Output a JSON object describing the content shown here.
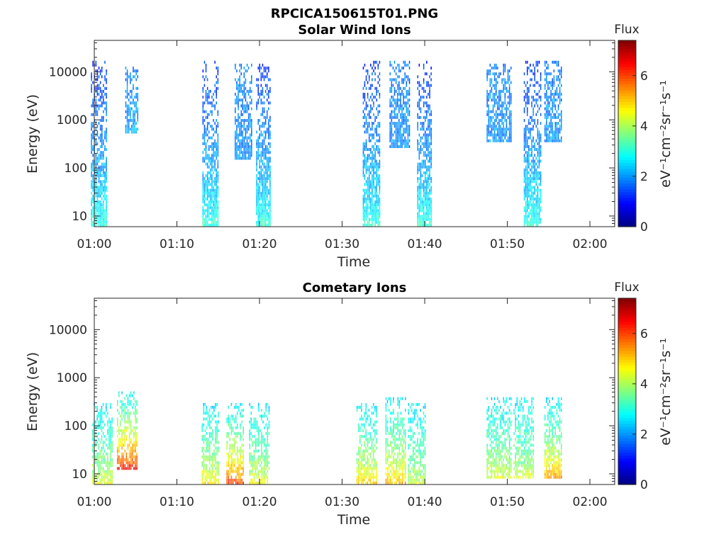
{
  "figure": {
    "suptitle": "RPCICA150615T01.PNG"
  },
  "colors": {
    "axis": "#262626",
    "colormap": "jet"
  },
  "chart_data": [
    {
      "type": "heatmap",
      "title": "Solar Wind Ions",
      "xlabel": "Time",
      "ylabel": "Energy (eV)",
      "yscale": "log",
      "ylim": [
        6,
        45000
      ],
      "xlim_minutes": [
        0,
        63
      ],
      "xticks": [
        "01:00",
        "01:10",
        "01:20",
        "01:30",
        "01:40",
        "01:50",
        "02:00"
      ],
      "yticks": [
        "10",
        "100",
        "1000",
        "10000"
      ],
      "colorbar": {
        "label": "Flux",
        "unit_label": "eV⁻¹cm⁻²sr⁻¹s⁻¹",
        "range": [
          0,
          7.4
        ],
        "ticks": [
          "0",
          "2",
          "4",
          "6"
        ]
      },
      "bursts": [
        {
          "time": "01:00:30",
          "width_min": 1.8,
          "emin": 6,
          "emax": 16000,
          "low_flux": 3.2,
          "high_flux": 1.3
        },
        {
          "time": "01:04:30",
          "width_min": 1.5,
          "emin": 500,
          "emax": 12000,
          "low_flux": 2.2,
          "high_flux": 1.8
        },
        {
          "time": "01:14:00",
          "width_min": 1.8,
          "emin": 6,
          "emax": 16000,
          "low_flux": 3.2,
          "high_flux": 1.3
        },
        {
          "time": "01:18:00",
          "width_min": 2.0,
          "emin": 150,
          "emax": 15000,
          "low_flux": 2.0,
          "high_flux": 1.8
        },
        {
          "time": "01:20:30",
          "width_min": 1.8,
          "emin": 6,
          "emax": 14000,
          "low_flux": 3.2,
          "high_flux": 1.3
        },
        {
          "time": "01:33:30",
          "width_min": 2.0,
          "emin": 6,
          "emax": 16000,
          "low_flux": 3.2,
          "high_flux": 1.3
        },
        {
          "time": "01:37:00",
          "width_min": 2.5,
          "emin": 250,
          "emax": 17000,
          "low_flux": 2.0,
          "high_flux": 1.8
        },
        {
          "time": "01:40:00",
          "width_min": 1.8,
          "emin": 6,
          "emax": 16000,
          "low_flux": 3.2,
          "high_flux": 1.3
        },
        {
          "time": "01:49:00",
          "width_min": 3.0,
          "emin": 350,
          "emax": 14000,
          "low_flux": 2.0,
          "high_flux": 1.8
        },
        {
          "time": "01:53:00",
          "width_min": 2.0,
          "emin": 6,
          "emax": 16000,
          "low_flux": 3.2,
          "high_flux": 1.3
        },
        {
          "time": "01:55:30",
          "width_min": 2.0,
          "emin": 350,
          "emax": 17000,
          "low_flux": 2.0,
          "high_flux": 1.8
        }
      ]
    },
    {
      "type": "heatmap",
      "title": "Cometary Ions",
      "xlabel": "Time",
      "ylabel": "Energy (eV)",
      "yscale": "log",
      "ylim": [
        6,
        45000
      ],
      "xlim_minutes": [
        0,
        63
      ],
      "xticks": [
        "01:00",
        "01:10",
        "01:20",
        "01:30",
        "01:40",
        "01:50",
        "02:00"
      ],
      "yticks": [
        "10",
        "100",
        "1000",
        "10000"
      ],
      "colorbar": {
        "label": "Flux",
        "unit_label": "eV⁻¹cm⁻²sr⁻¹s⁻¹",
        "range": [
          0,
          7.4
        ],
        "ticks": [
          "0",
          "2",
          "4",
          "6"
        ]
      },
      "bursts": [
        {
          "time": "01:01:00",
          "width_min": 2.5,
          "emin": 6,
          "emax": 300,
          "low_flux": 4.6,
          "high_flux": 2.6
        },
        {
          "time": "01:04:00",
          "width_min": 2.5,
          "emin": 12,
          "emax": 500,
          "low_flux": 6.9,
          "high_flux": 2.8
        },
        {
          "time": "01:14:00",
          "width_min": 2.0,
          "emin": 6,
          "emax": 300,
          "low_flux": 5.0,
          "high_flux": 2.6
        },
        {
          "time": "01:17:00",
          "width_min": 2.0,
          "emin": 6,
          "emax": 300,
          "low_flux": 6.4,
          "high_flux": 2.6
        },
        {
          "time": "01:20:00",
          "width_min": 2.5,
          "emin": 6,
          "emax": 300,
          "low_flux": 4.8,
          "high_flux": 2.6
        },
        {
          "time": "01:33:00",
          "width_min": 2.5,
          "emin": 6,
          "emax": 300,
          "low_flux": 5.2,
          "high_flux": 2.6
        },
        {
          "time": "01:36:30",
          "width_min": 2.5,
          "emin": 6,
          "emax": 400,
          "low_flux": 5.4,
          "high_flux": 2.6
        },
        {
          "time": "01:39:00",
          "width_min": 2.0,
          "emin": 6,
          "emax": 300,
          "low_flux": 4.4,
          "high_flux": 2.6
        },
        {
          "time": "01:49:00",
          "width_min": 3.0,
          "emin": 8,
          "emax": 400,
          "low_flux": 4.6,
          "high_flux": 2.6
        },
        {
          "time": "01:52:00",
          "width_min": 2.5,
          "emin": 8,
          "emax": 400,
          "low_flux": 4.4,
          "high_flux": 2.6
        },
        {
          "time": "01:55:30",
          "width_min": 2.0,
          "emin": 8,
          "emax": 400,
          "low_flux": 5.6,
          "high_flux": 2.6
        }
      ]
    }
  ]
}
